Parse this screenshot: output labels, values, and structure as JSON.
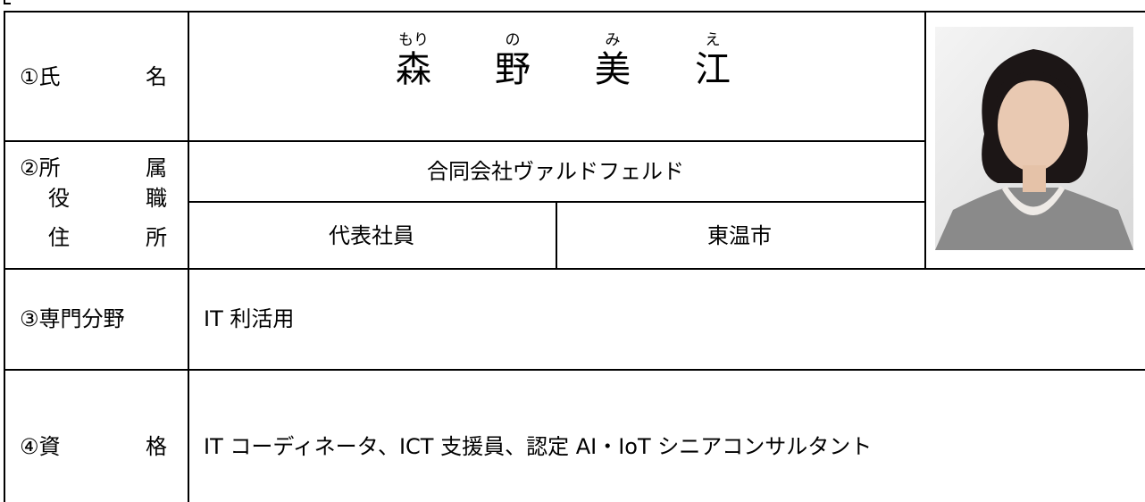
{
  "name": {
    "label": [
      "①氏",
      "名"
    ],
    "ruby": [
      {
        "base": "森",
        "reading": "もり"
      },
      {
        "base": "野",
        "reading": "の"
      },
      {
        "base": "美",
        "reading": "み"
      },
      {
        "base": "江",
        "reading": "え"
      }
    ]
  },
  "affiliation": {
    "labels": [
      [
        "②所",
        "属"
      ],
      [
        "役",
        "職"
      ],
      [
        "住",
        "所"
      ]
    ],
    "organization": "合同会社ヴァルドフェルド",
    "title": "代表社員",
    "address": "東温市"
  },
  "specialty": {
    "label": "③専門分野",
    "value": "IT 利活用"
  },
  "qualifications": {
    "label": [
      "④資",
      "格"
    ],
    "value": "IT コーディネータ、ICT 支援員、認定 AI・IoT シニアコンサルタント"
  }
}
